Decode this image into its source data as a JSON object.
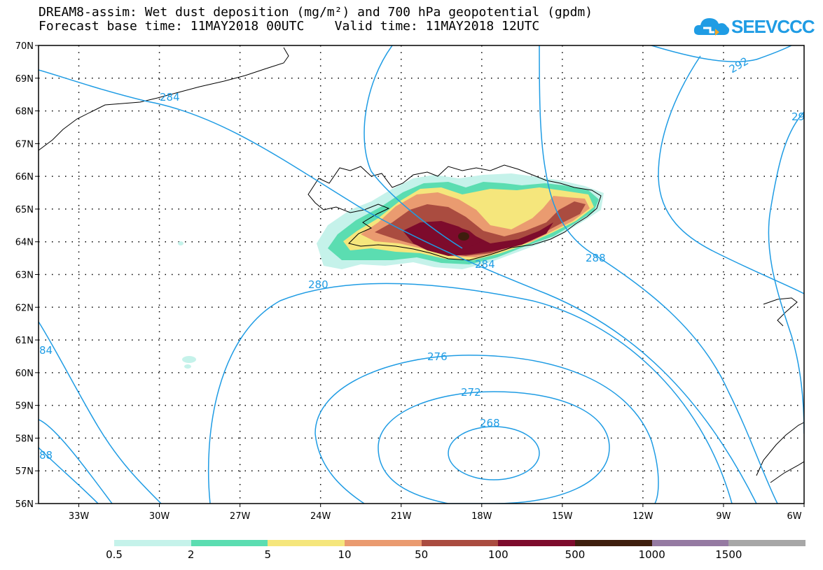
{
  "title": {
    "line1": "DREAM8-assim: Wet dust deposition (mg/m²) and 700 hPa geopotential (gpdm)",
    "line2": "Forecast base time: 11MAY2018 00UTC    Valid time: 11MAY2018 12UTC"
  },
  "logo": {
    "text": "SEEVCCC",
    "icon": "cloud-icon",
    "color": "#1f9ce4"
  },
  "map": {
    "lat_labels": [
      "70N",
      "69N",
      "68N",
      "67N",
      "66N",
      "65N",
      "64N",
      "63N",
      "62N",
      "61N",
      "60N",
      "59N",
      "58N",
      "57N",
      "56N"
    ],
    "lon_labels": [
      "33W",
      "30W",
      "27W",
      "24W",
      "21W",
      "18W",
      "15W",
      "12W",
      "9W",
      "6W"
    ],
    "contour_color": "#1f9ce4",
    "contour_labels": {
      "c268": "268",
      "c272": "272",
      "c276": "276",
      "c280": "280",
      "c284a": "284",
      "c284b": "284",
      "c284c": "84",
      "c288a": "288",
      "c288b": "88",
      "c292a": "292",
      "c292b": "29"
    }
  },
  "legend": {
    "labels": [
      "0.5",
      "2",
      "5",
      "10",
      "50",
      "100",
      "500",
      "1000",
      "1500"
    ],
    "colors": [
      "#c5f2ea",
      "#5bddb1",
      "#f5e67c",
      "#ea9b70",
      "#aa4c40",
      "#7d0b2c",
      "#3e1e0e",
      "#957aa2",
      "#a7a7a7"
    ]
  }
}
